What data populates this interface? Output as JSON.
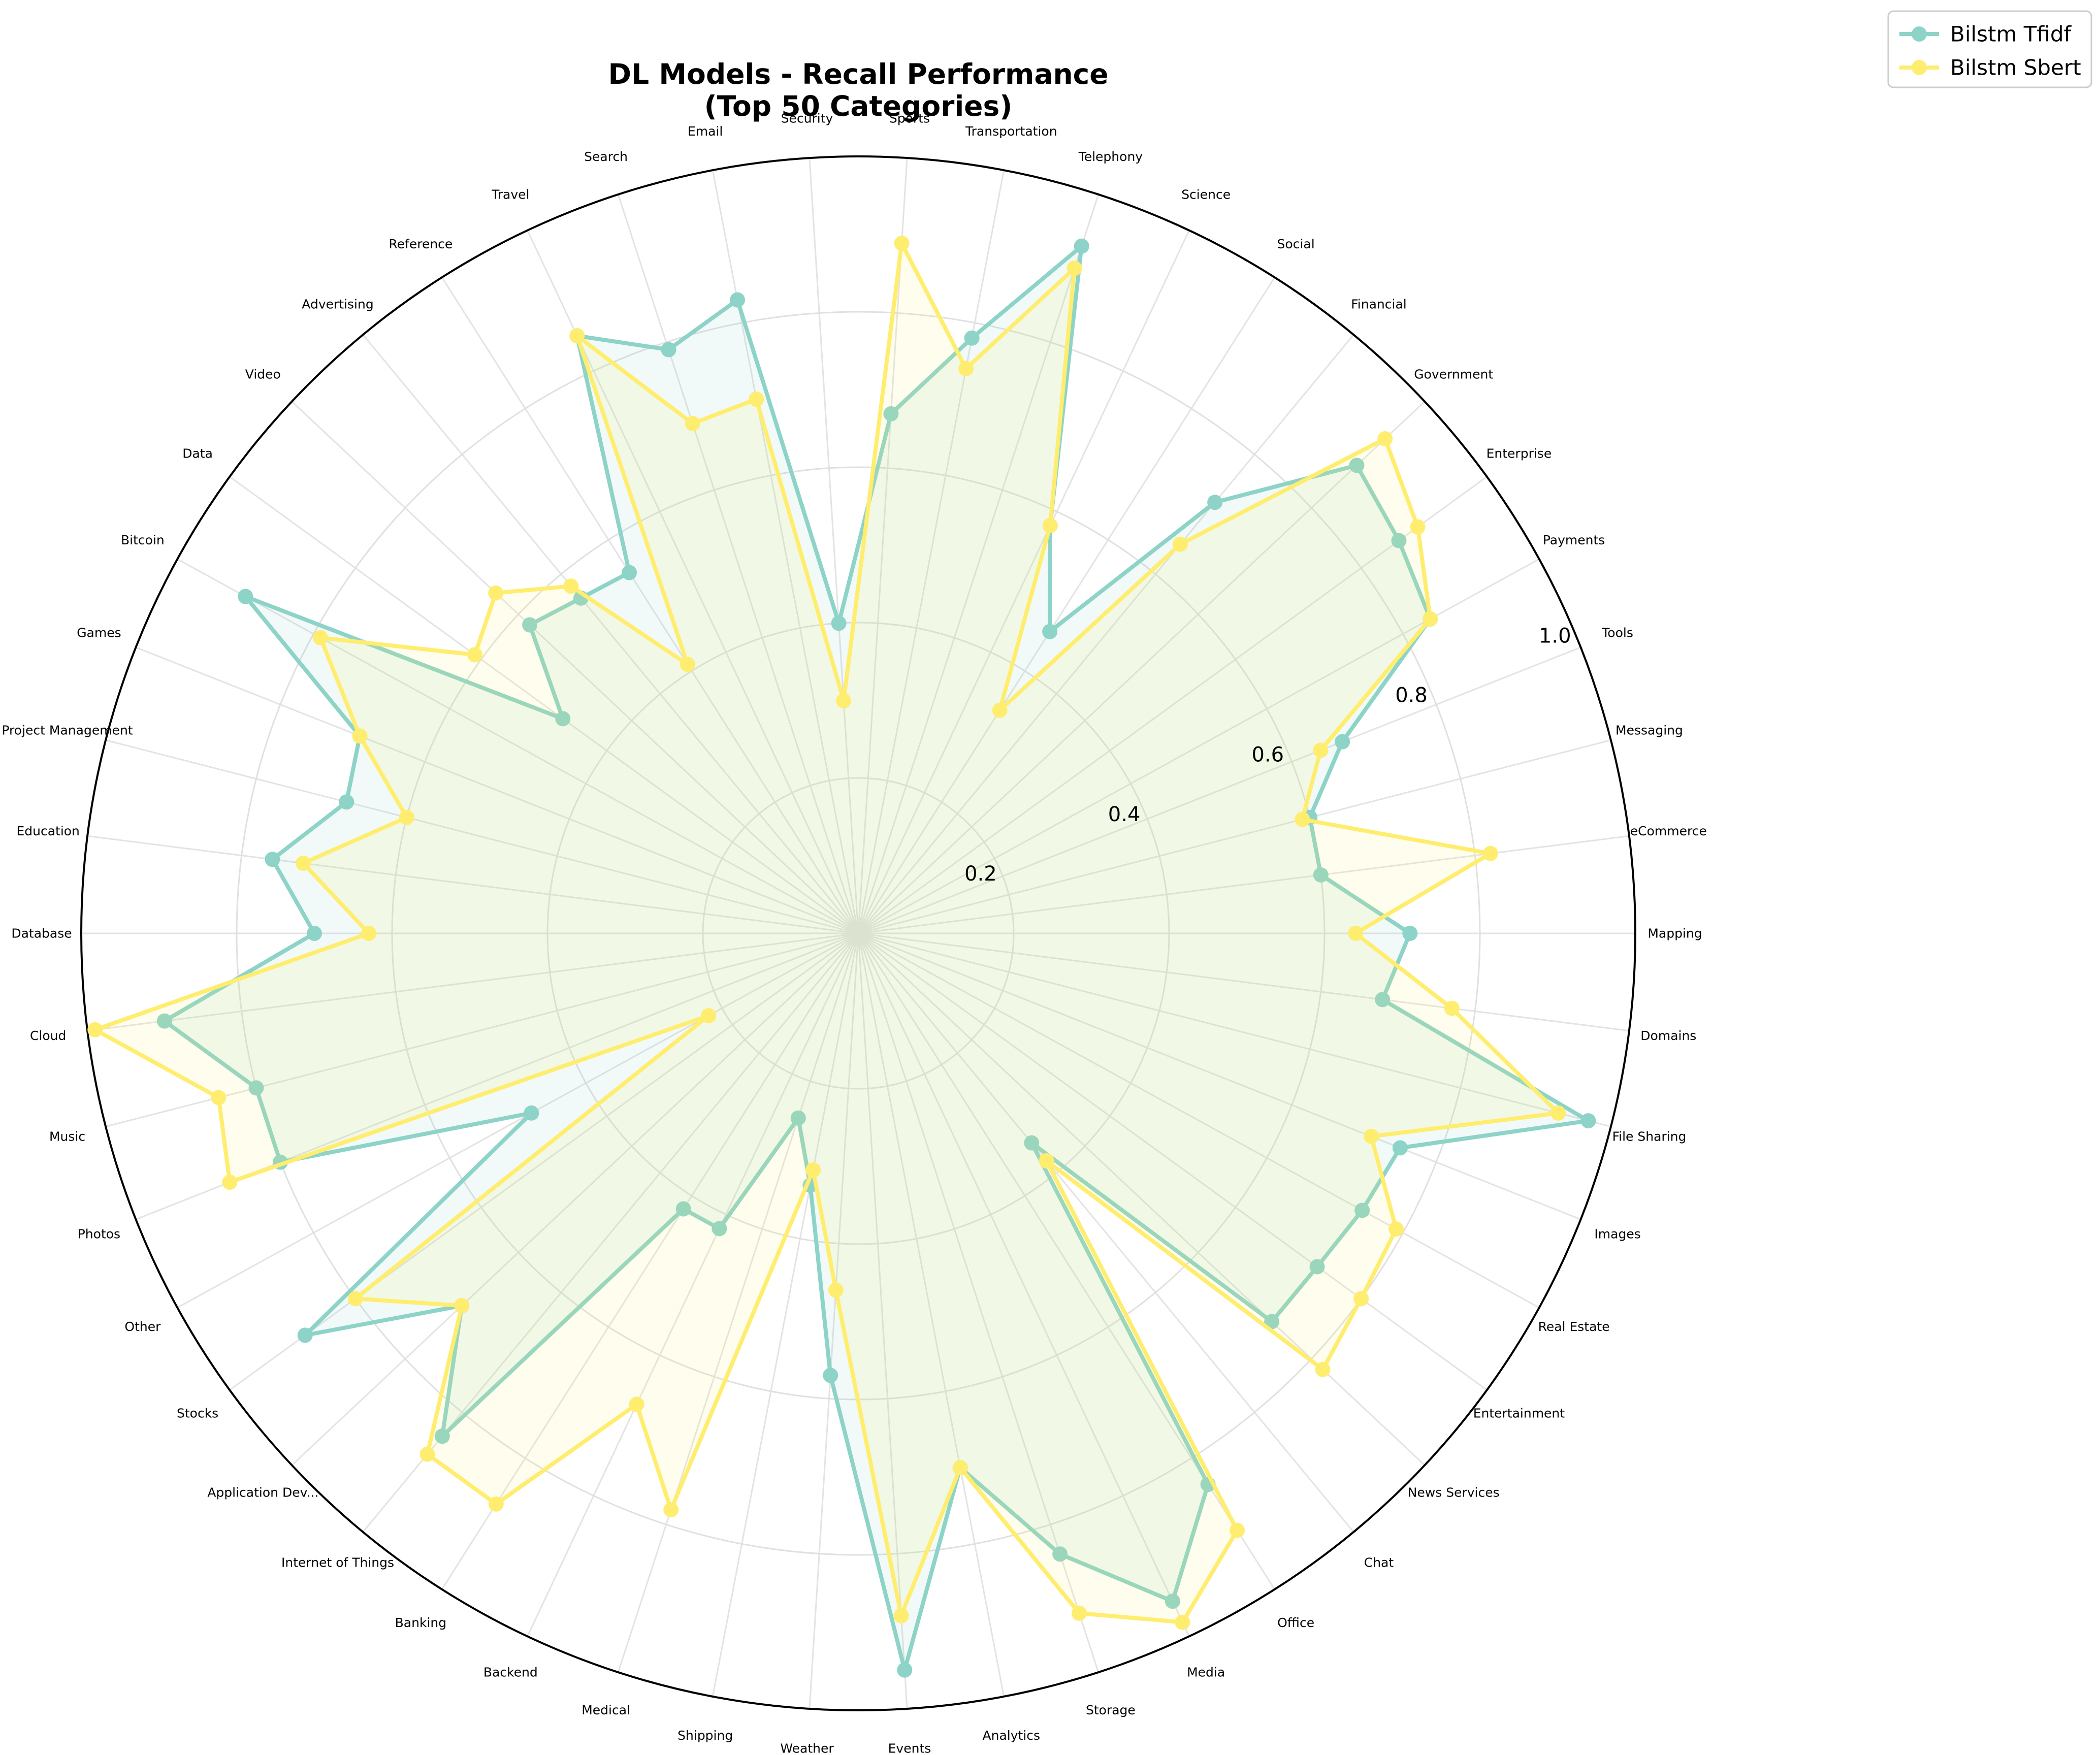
{
  "chart_data": {
    "type": "radar",
    "title": [
      "DL Models - Recall Performance",
      "(Top 50 Categories)"
    ],
    "rlim": [
      0,
      1.0
    ],
    "rticks": [
      0.2,
      0.4,
      0.6,
      0.8,
      1.0
    ],
    "rtick_labels": [
      "0.2",
      "0.4",
      "0.6",
      "0.8",
      "1.0"
    ],
    "grid": true,
    "legend_position": "top-right",
    "categories": [
      "Mapping",
      "eCommerce",
      "Messaging",
      "Tools",
      "Payments",
      "Enterprise",
      "Government",
      "Financial",
      "Social",
      "Science",
      "Telephony",
      "Transportation",
      "Sports",
      "Security",
      "Email",
      "Search",
      "Travel",
      "Reference",
      "Advertising",
      "Video",
      "Data",
      "Bitcoin",
      "Games",
      "Project Management",
      "Education",
      "Database",
      "Cloud",
      "Music",
      "Photos",
      "Other",
      "Stocks",
      "Application Dev...",
      "Internet of Things",
      "Banking",
      "Backend",
      "Medical",
      "Shipping",
      "Weather",
      "Events",
      "Analytics",
      "Storage",
      "Media",
      "Office",
      "Chat",
      "News Services",
      "Entertainment",
      "Real Estate",
      "Images",
      "File Sharing",
      "Domains"
    ],
    "series": [
      {
        "name": "Bilstm Tfidf",
        "color": "#8dd3c7",
        "values": [
          0.71,
          0.6,
          0.6,
          0.67,
          0.84,
          0.86,
          0.88,
          0.72,
          0.46,
          0.58,
          0.93,
          0.78,
          0.67,
          0.4,
          0.83,
          0.79,
          0.85,
          0.55,
          0.56,
          0.58,
          0.47,
          0.9,
          0.69,
          0.68,
          0.76,
          0.7,
          0.9,
          0.8,
          0.8,
          0.48,
          0.88,
          0.7,
          0.84,
          0.42,
          0.42,
          0.25,
          0.33,
          0.57,
          0.95,
          0.7,
          0.84,
          0.95,
          0.84,
          0.35,
          0.73,
          0.73,
          0.74,
          0.75,
          0.97,
          0.68
        ]
      },
      {
        "name": "Bilstm Sbert",
        "color": "#ffed6f",
        "values": [
          0.64,
          0.82,
          0.59,
          0.64,
          0.84,
          0.89,
          0.93,
          0.65,
          0.34,
          0.58,
          0.9,
          0.74,
          0.89,
          0.3,
          0.7,
          0.69,
          0.85,
          0.41,
          0.58,
          0.64,
          0.61,
          0.79,
          0.69,
          0.6,
          0.72,
          0.63,
          0.99,
          0.85,
          0.87,
          0.22,
          0.8,
          0.7,
          0.87,
          0.87,
          0.67,
          0.78,
          0.31,
          0.46,
          0.88,
          0.7,
          0.92,
          0.98,
          0.91,
          0.38,
          0.82,
          0.8,
          0.79,
          0.71,
          0.93,
          0.77
        ]
      }
    ]
  }
}
